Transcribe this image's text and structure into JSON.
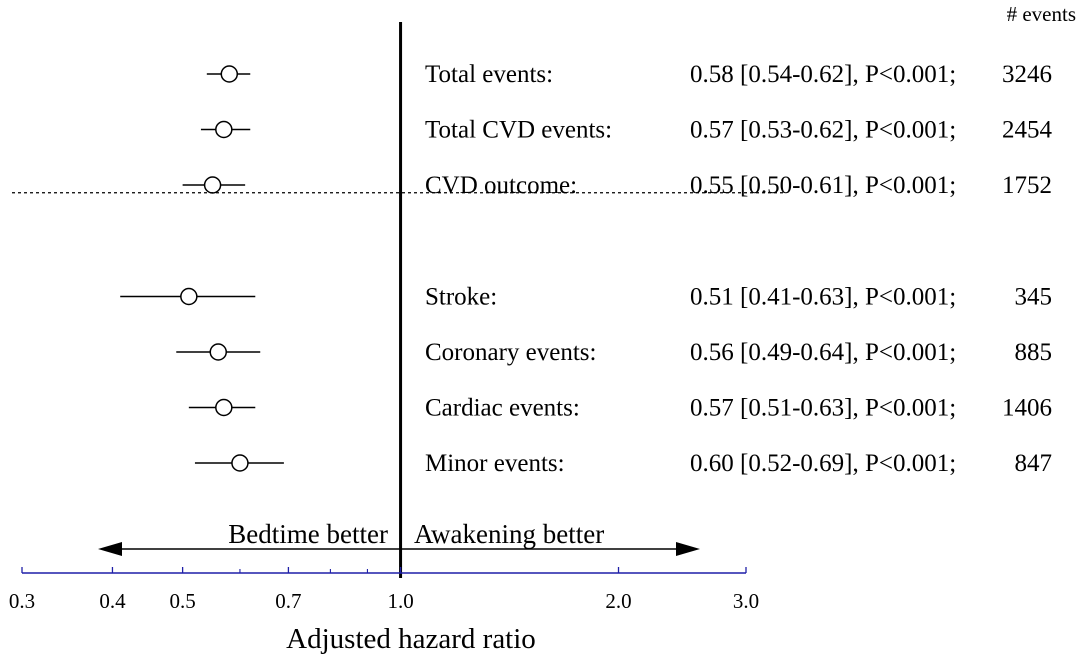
{
  "chart_data": {
    "type": "forest",
    "xlabel": "Adjusted hazard ratio",
    "x_scale": "log",
    "xlim": [
      0.3,
      3.0
    ],
    "x_ticks": [
      {
        "value": 0.3,
        "label": "0.3"
      },
      {
        "value": 0.4,
        "label": "0.4"
      },
      {
        "value": 0.5,
        "label": "0.5"
      },
      {
        "value": 0.7,
        "label": "0.7"
      },
      {
        "value": 1.0,
        "label": "1.0"
      },
      {
        "value": 2.0,
        "label": "2.0"
      },
      {
        "value": 3.0,
        "label": "3.0"
      }
    ],
    "minor_ticks": [
      0.6,
      0.8,
      0.9
    ],
    "reference_line": 1.0,
    "column_header": "# events",
    "direction_labels": {
      "left": "Bedtime better",
      "right": "Awakening better"
    },
    "groups": [
      {
        "rows": [
          {
            "label": "Total events:",
            "hr": 0.58,
            "lo": 0.54,
            "hi": 0.62,
            "stat": "0.58 [0.54-0.62], P<0.001;",
            "events": "3246"
          },
          {
            "label": "Total CVD events:",
            "hr": 0.57,
            "lo": 0.53,
            "hi": 0.62,
            "stat": "0.57 [0.53-0.62], P<0.001;",
            "events": "2454"
          },
          {
            "label": "CVD outcome:",
            "hr": 0.55,
            "lo": 0.5,
            "hi": 0.61,
            "stat": "0.55 [0.50-0.61], P<0.001;",
            "events": "1752"
          }
        ]
      },
      {
        "rows": [
          {
            "label": "Stroke:",
            "hr": 0.51,
            "lo": 0.41,
            "hi": 0.63,
            "stat": "0.51 [0.41-0.63], P<0.001;",
            "events": "345"
          },
          {
            "label": "Coronary events:",
            "hr": 0.56,
            "lo": 0.49,
            "hi": 0.64,
            "stat": "0.56 [0.49-0.64], P<0.001;",
            "events": "885"
          },
          {
            "label": "Cardiac events:",
            "hr": 0.57,
            "lo": 0.51,
            "hi": 0.63,
            "stat": "0.57 [0.51-0.63], P<0.001;",
            "events": "1406"
          },
          {
            "label": "Minor events:",
            "hr": 0.6,
            "lo": 0.52,
            "hi": 0.69,
            "stat": "0.60 [0.52-0.69], P<0.001;",
            "events": "847"
          }
        ]
      }
    ],
    "colors": {
      "axis": "#1f1fa8",
      "marks": "#000000"
    }
  }
}
